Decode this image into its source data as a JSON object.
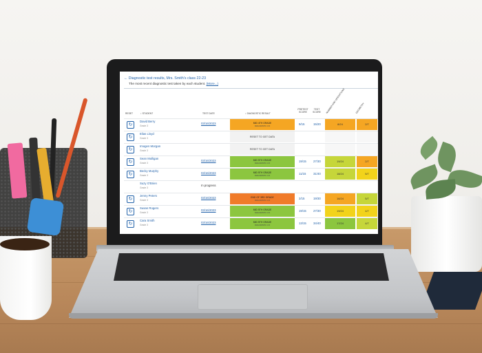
{
  "colors": {
    "orange": "#f5a623",
    "red_orange": "#f07b2a",
    "green": "#8cc63f",
    "yellow_green": "#c6d63a",
    "yellow": "#f2d31b",
    "link_blue": "#1e5fa8"
  },
  "page": {
    "title": "Diagnostic test results, Mrs. Smith's class 22-23",
    "subtitle": "The most recent diagnostic test taken by each student.",
    "more_link": "(More...)"
  },
  "table": {
    "headers": {
      "reset": "RESET",
      "student": "STUDENT",
      "test_date": "TEST DATE",
      "diagnostic_result": "DIAGNOSTIC RESULT",
      "pretest_score": "PRETEST SCORE",
      "test_score": "TEST SCORE",
      "number_ops": "NUMBER AND OPERATIONS",
      "geometry": "GEOMETRY"
    },
    "rows": [
      {
        "name": "David Berry",
        "grade": "Grade 3",
        "date": "03/16/2023",
        "result": "MID 4TH GRADE",
        "result_sub": "DIAGNOSTIC 3-5",
        "result_color": "#f5a623",
        "pretest": "9/15",
        "test": "15/20",
        "num_ops": "8/24",
        "num_color": "#f5a623",
        "geo": "2/7",
        "geo_color": "#f5a623"
      },
      {
        "name": "Elias Lloyd",
        "grade": "Grade 3",
        "date": "",
        "result": "RESET TO GET DATA",
        "result_sub": "",
        "result_color": "#f2f2f2",
        "pretest": "",
        "test": "",
        "num_ops": "",
        "num_color": "#f7f7f7",
        "geo": "",
        "geo_color": "#f7f7f7"
      },
      {
        "name": "Imogen Morgan",
        "grade": "Grade 3",
        "date": "",
        "result": "RESET TO GET DATA",
        "result_sub": "",
        "result_color": "#f2f2f2",
        "pretest": "",
        "test": "",
        "num_ops": "",
        "num_color": "#f7f7f7",
        "geo": "",
        "geo_color": "#f7f7f7"
      },
      {
        "name": "Sean Mulligan",
        "grade": "Grade 3",
        "date": "03/16/2023",
        "result": "MID 5TH GRADE",
        "result_sub": "DIAGNOSTIC 3-5",
        "result_color": "#8cc63f",
        "pretest": "19/15",
        "test": "27/30",
        "num_ops": "19/24",
        "num_color": "#c6d63a",
        "geo": "2/7",
        "geo_color": "#f5a623"
      },
      {
        "name": "Becky Murphy",
        "grade": "Grade 3",
        "date": "03/16/2023",
        "result": "MID 5TH GRADE",
        "result_sub": "DIAGNOSTIC 3-5",
        "result_color": "#8cc63f",
        "pretest": "11/15",
        "test": "31/40",
        "num_ops": "18/24",
        "num_color": "#c6d63a",
        "geo": "5/7",
        "geo_color": "#f2d31b"
      },
      {
        "name": "Suzy O'Brien",
        "grade": "Grade 3",
        "date": "In progress",
        "result": "",
        "result_sub": "",
        "result_color": "#ffffff",
        "pretest": "",
        "test": "",
        "num_ops": "",
        "num_color": "#ffffff",
        "geo": "",
        "geo_color": "#ffffff"
      },
      {
        "name": "Jenny Peters",
        "grade": "Grade 3",
        "date": "03/16/2023",
        "result": "END OF 3RD GRADE",
        "result_sub": "DIAGNOSTIC 3-5",
        "result_color": "#f07b2a",
        "pretest": "2/15",
        "test": "19/30",
        "num_ops": "16/24",
        "num_color": "#f5a623",
        "geo": "5/7",
        "geo_color": "#c6d63a"
      },
      {
        "name": "Susan Rogers",
        "grade": "Grade 3",
        "date": "03/16/2023",
        "result": "MID 5TH GRADE",
        "result_sub": "DIAGNOSTIC 3-5",
        "result_color": "#8cc63f",
        "pretest": "19/15",
        "test": "27/30",
        "num_ops": "19/24",
        "num_color": "#f2d31b",
        "geo": "4/7",
        "geo_color": "#f2d31b"
      },
      {
        "name": "Cara Smith",
        "grade": "Grade 3",
        "date": "03/16/2023",
        "result": "MID 5TH GRADE",
        "result_sub": "DIAGNOSTIC 3-5",
        "result_color": "#8cc63f",
        "pretest": "13/15",
        "test": "34/40",
        "num_ops": "17/24",
        "num_color": "#8cc63f",
        "geo": "4/7",
        "geo_color": "#c6d63a"
      }
    ]
  }
}
